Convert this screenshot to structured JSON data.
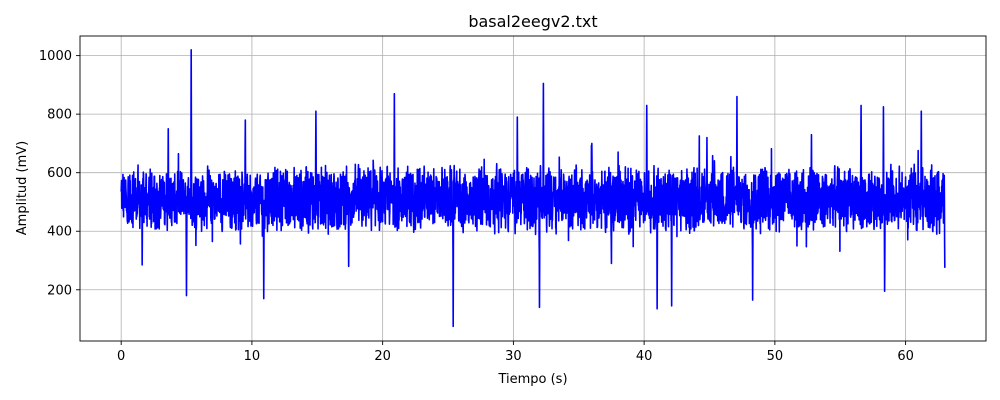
{
  "chart_data": {
    "type": "line",
    "title": "basal2eegv2.txt",
    "xlabel": "Tiempo (s)",
    "ylabel": "Amplitud (mV)",
    "xlim": [
      -3.15,
      66.15
    ],
    "ylim": [
      25,
      1067
    ],
    "xticks": [
      0,
      10,
      20,
      30,
      40,
      50,
      60
    ],
    "yticks": [
      200,
      400,
      600,
      800,
      1000
    ],
    "grid": true,
    "series": [
      {
        "color": "#0000ff",
        "x_range": [
          0,
          63
        ],
        "baseline": 510,
        "noise_amplitude": 95,
        "peaks": [
          {
            "x": 5.35,
            "y": 1020
          },
          {
            "x": 5.0,
            "y": 180
          },
          {
            "x": 10.9,
            "y": 170
          },
          {
            "x": 9.5,
            "y": 780
          },
          {
            "x": 14.9,
            "y": 810
          },
          {
            "x": 20.9,
            "y": 870
          },
          {
            "x": 25.4,
            "y": 75
          },
          {
            "x": 32.3,
            "y": 905
          },
          {
            "x": 30.3,
            "y": 790
          },
          {
            "x": 32.0,
            "y": 140
          },
          {
            "x": 40.2,
            "y": 830
          },
          {
            "x": 41.0,
            "y": 135
          },
          {
            "x": 42.1,
            "y": 145
          },
          {
            "x": 47.1,
            "y": 860
          },
          {
            "x": 48.3,
            "y": 165
          },
          {
            "x": 56.6,
            "y": 830
          },
          {
            "x": 58.3,
            "y": 825
          },
          {
            "x": 58.4,
            "y": 195
          },
          {
            "x": 63.0,
            "y": 275
          },
          {
            "x": 1.6,
            "y": 285
          },
          {
            "x": 3.6,
            "y": 750
          },
          {
            "x": 17.4,
            "y": 280
          },
          {
            "x": 37.5,
            "y": 290
          },
          {
            "x": 61.2,
            "y": 810
          },
          {
            "x": 36.0,
            "y": 700
          },
          {
            "x": 44.8,
            "y": 720
          },
          {
            "x": 52.8,
            "y": 730
          }
        ]
      }
    ]
  }
}
